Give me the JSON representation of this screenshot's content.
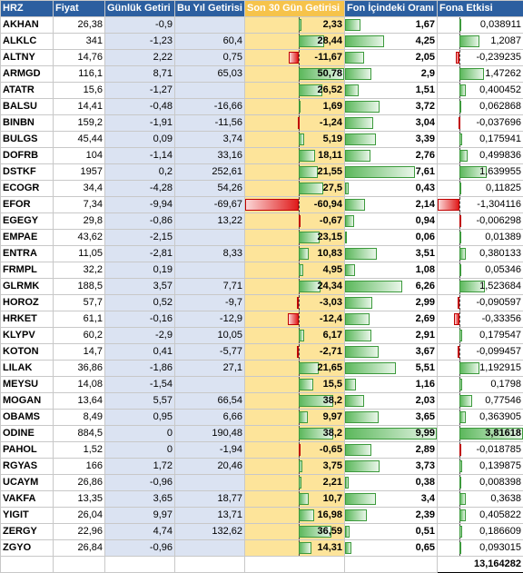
{
  "headers": [
    "HRZ",
    "Fiyat",
    "Günlük Getiri",
    "Bu Yıl Getirisi",
    "Son 30 Gün Getirisi",
    "Fon İçindeki Oranı",
    "Fona Etkisi"
  ],
  "rows": [
    {
      "code": "AKHAN",
      "price": "26,38",
      "daily": "-0,9",
      "ytd": "",
      "m30": "2,33",
      "m30v": 2.33,
      "ratio": "1,67",
      "ratiov": 1.67,
      "effect": "0,038911",
      "effectv": 0.038911
    },
    {
      "code": "ALKLC",
      "price": "341",
      "daily": "-1,23",
      "ytd": "60,4",
      "m30": "28,44",
      "m30v": 28.44,
      "ratio": "4,25",
      "ratiov": 4.25,
      "effect": "1,2087",
      "effectv": 1.2087
    },
    {
      "code": "ALTNY",
      "price": "14,76",
      "daily": "2,22",
      "ytd": "0,75",
      "m30": "-11,67",
      "m30v": -11.67,
      "ratio": "2,05",
      "ratiov": 2.05,
      "effect": "-0,239235",
      "effectv": -0.239235
    },
    {
      "code": "ARMGD",
      "price": "116,1",
      "daily": "8,71",
      "ytd": "65,03",
      "m30": "50,78",
      "m30v": 50.78,
      "ratio": "2,9",
      "ratiov": 2.9,
      "effect": "1,47262",
      "effectv": 1.47262
    },
    {
      "code": "ATATR",
      "price": "15,6",
      "daily": "-1,27",
      "ytd": "",
      "m30": "26,52",
      "m30v": 26.52,
      "ratio": "1,51",
      "ratiov": 1.51,
      "effect": "0,400452",
      "effectv": 0.400452
    },
    {
      "code": "BALSU",
      "price": "14,41",
      "daily": "-0,48",
      "ytd": "-16,66",
      "m30": "1,69",
      "m30v": 1.69,
      "ratio": "3,72",
      "ratiov": 3.72,
      "effect": "0,062868",
      "effectv": 0.062868
    },
    {
      "code": "BINBN",
      "price": "159,2",
      "daily": "-1,91",
      "ytd": "-11,56",
      "m30": "-1,24",
      "m30v": -1.24,
      "ratio": "3,04",
      "ratiov": 3.04,
      "effect": "-0,037696",
      "effectv": -0.037696
    },
    {
      "code": "BULGS",
      "price": "45,44",
      "daily": "0,09",
      "ytd": "3,74",
      "m30": "5,19",
      "m30v": 5.19,
      "ratio": "3,39",
      "ratiov": 3.39,
      "effect": "0,175941",
      "effectv": 0.175941
    },
    {
      "code": "DOFRB",
      "price": "104",
      "daily": "-1,14",
      "ytd": "33,16",
      "m30": "18,11",
      "m30v": 18.11,
      "ratio": "2,76",
      "ratiov": 2.76,
      "effect": "0,499836",
      "effectv": 0.499836
    },
    {
      "code": "DSTKF",
      "price": "1957",
      "daily": "0,2",
      "ytd": "252,61",
      "m30": "21,55",
      "m30v": 21.55,
      "ratio": "7,61",
      "ratiov": 7.61,
      "effect": "1,639955",
      "effectv": 1.639955
    },
    {
      "code": "ECOGR",
      "price": "34,4",
      "daily": "-4,28",
      "ytd": "54,26",
      "m30": "27,5",
      "m30v": 27.5,
      "ratio": "0,43",
      "ratiov": 0.43,
      "effect": "0,11825",
      "effectv": 0.11825
    },
    {
      "code": "EFOR",
      "price": "7,34",
      "daily": "-9,94",
      "ytd": "-69,67",
      "m30": "-60,94",
      "m30v": -60.94,
      "ratio": "2,14",
      "ratiov": 2.14,
      "effect": "-1,304116",
      "effectv": -1.304116
    },
    {
      "code": "EGEGY",
      "price": "29,8",
      "daily": "-0,86",
      "ytd": "13,22",
      "m30": "-0,67",
      "m30v": -0.67,
      "ratio": "0,94",
      "ratiov": 0.94,
      "effect": "-0,006298",
      "effectv": -0.006298
    },
    {
      "code": "EMPAE",
      "price": "43,62",
      "daily": "-2,15",
      "ytd": "",
      "m30": "23,15",
      "m30v": 23.15,
      "ratio": "0,06",
      "ratiov": 0.06,
      "effect": "0,01389",
      "effectv": 0.01389
    },
    {
      "code": "ENTRA",
      "price": "11,05",
      "daily": "-2,81",
      "ytd": "8,33",
      "m30": "10,83",
      "m30v": 10.83,
      "ratio": "3,51",
      "ratiov": 3.51,
      "effect": "0,380133",
      "effectv": 0.380133
    },
    {
      "code": "FRMPL",
      "price": "32,2",
      "daily": "0,19",
      "ytd": "",
      "m30": "4,95",
      "m30v": 4.95,
      "ratio": "1,08",
      "ratiov": 1.08,
      "effect": "0,05346",
      "effectv": 0.05346
    },
    {
      "code": "GLRMK",
      "price": "188,5",
      "daily": "3,57",
      "ytd": "7,71",
      "m30": "24,34",
      "m30v": 24.34,
      "ratio": "6,26",
      "ratiov": 6.26,
      "effect": "1,523684",
      "effectv": 1.523684
    },
    {
      "code": "HOROZ",
      "price": "57,7",
      "daily": "0,52",
      "ytd": "-9,7",
      "m30": "-3,03",
      "m30v": -3.03,
      "ratio": "2,99",
      "ratiov": 2.99,
      "effect": "-0,090597",
      "effectv": -0.090597
    },
    {
      "code": "HRKET",
      "price": "61,1",
      "daily": "-0,16",
      "ytd": "-12,9",
      "m30": "-12,4",
      "m30v": -12.4,
      "ratio": "2,69",
      "ratiov": 2.69,
      "effect": "-0,33356",
      "effectv": -0.33356
    },
    {
      "code": "KLYPV",
      "price": "60,2",
      "daily": "-2,9",
      "ytd": "10,05",
      "m30": "6,17",
      "m30v": 6.17,
      "ratio": "2,91",
      "ratiov": 2.91,
      "effect": "0,179547",
      "effectv": 0.179547
    },
    {
      "code": "KOTON",
      "price": "14,7",
      "daily": "0,41",
      "ytd": "-5,77",
      "m30": "-2,71",
      "m30v": -2.71,
      "ratio": "3,67",
      "ratiov": 3.67,
      "effect": "-0,099457",
      "effectv": -0.099457
    },
    {
      "code": "LILAK",
      "price": "36,86",
      "daily": "-1,86",
      "ytd": "27,1",
      "m30": "21,65",
      "m30v": 21.65,
      "ratio": "5,51",
      "ratiov": 5.51,
      "effect": "1,192915",
      "effectv": 1.192915
    },
    {
      "code": "MEYSU",
      "price": "14,08",
      "daily": "-1,54",
      "ytd": "",
      "m30": "15,5",
      "m30v": 15.5,
      "ratio": "1,16",
      "ratiov": 1.16,
      "effect": "0,1798",
      "effectv": 0.1798
    },
    {
      "code": "MOGAN",
      "price": "13,64",
      "daily": "5,57",
      "ytd": "66,54",
      "m30": "38,2",
      "m30v": 38.2,
      "ratio": "2,03",
      "ratiov": 2.03,
      "effect": "0,77546",
      "effectv": 0.77546
    },
    {
      "code": "OBAMS",
      "price": "8,49",
      "daily": "0,95",
      "ytd": "6,66",
      "m30": "9,97",
      "m30v": 9.97,
      "ratio": "3,65",
      "ratiov": 3.65,
      "effect": "0,363905",
      "effectv": 0.363905
    },
    {
      "code": "ODINE",
      "price": "884,5",
      "daily": "0",
      "ytd": "190,48",
      "m30": "38,2",
      "m30v": 38.2,
      "ratio": "9,99",
      "ratiov": 9.99,
      "effect": "3,81618",
      "effectv": 3.81618,
      "highlight": true
    },
    {
      "code": "PAHOL",
      "price": "1,52",
      "daily": "0",
      "ytd": "-1,94",
      "m30": "-0,65",
      "m30v": -0.65,
      "ratio": "2,89",
      "ratiov": 2.89,
      "effect": "-0,018785",
      "effectv": -0.018785
    },
    {
      "code": "RGYAS",
      "price": "166",
      "daily": "1,72",
      "ytd": "20,46",
      "m30": "3,75",
      "m30v": 3.75,
      "ratio": "3,73",
      "ratiov": 3.73,
      "effect": "0,139875",
      "effectv": 0.139875
    },
    {
      "code": "UCAYM",
      "price": "26,86",
      "daily": "-0,96",
      "ytd": "",
      "m30": "2,21",
      "m30v": 2.21,
      "ratio": "0,38",
      "ratiov": 0.38,
      "effect": "0,008398",
      "effectv": 0.008398
    },
    {
      "code": "VAKFA",
      "price": "13,35",
      "daily": "3,65",
      "ytd": "18,77",
      "m30": "10,7",
      "m30v": 10.7,
      "ratio": "3,4",
      "ratiov": 3.4,
      "effect": "0,3638",
      "effectv": 0.3638
    },
    {
      "code": "YIGIT",
      "price": "26,04",
      "daily": "9,97",
      "ytd": "13,71",
      "m30": "16,98",
      "m30v": 16.98,
      "ratio": "2,39",
      "ratiov": 2.39,
      "effect": "0,405822",
      "effectv": 0.405822
    },
    {
      "code": "ZERGY",
      "price": "22,96",
      "daily": "4,74",
      "ytd": "132,62",
      "m30": "36,59",
      "m30v": 36.59,
      "ratio": "0,51",
      "ratiov": 0.51,
      "effect": "0,186609",
      "effectv": 0.186609
    },
    {
      "code": "ZGYO",
      "price": "26,84",
      "daily": "-0,96",
      "ytd": "",
      "m30": "14,31",
      "m30v": 14.31,
      "ratio": "0,65",
      "ratiov": 0.65,
      "effect": "0,093015",
      "effectv": 0.093015
    }
  ],
  "total": "13,164282",
  "colors": {
    "header": "#2c5fa0",
    "gold": "#fde49a",
    "blue": "#dbe3f2",
    "pos": "#5cb85c",
    "neg": "#e01c1c"
  },
  "scales": {
    "m30": {
      "min": -60.94,
      "max": 50.78
    },
    "ratio": {
      "min": 0,
      "max": 9.99
    },
    "effect": {
      "min": -1.304116,
      "max": 3.81618
    }
  }
}
